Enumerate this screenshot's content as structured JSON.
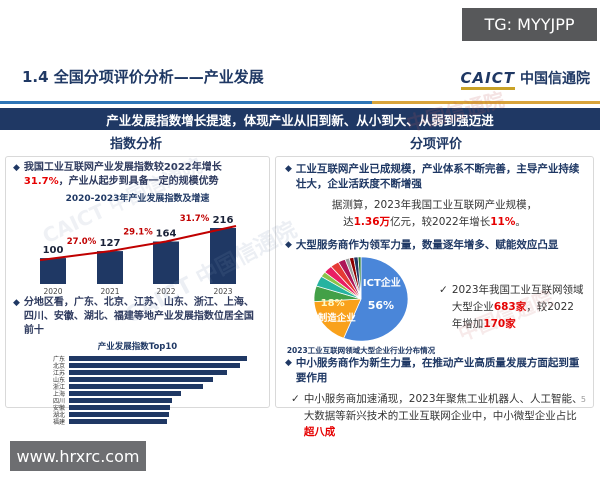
{
  "badge": "TG: MYYJPP",
  "header": {
    "title": "1.4 全国分项评价分析——产业发展",
    "logo_caict": "CAICT",
    "logo_org": "中国信通院"
  },
  "banner": "产业发展指数增长提速，体现产业从旧到新、从小到大、从弱到强迈进",
  "sections": {
    "left_title": "指数分析",
    "right_title": "分项评价"
  },
  "markers": {
    "diamond": "◆",
    "check": "✓"
  },
  "left": {
    "bullet1": {
      "pre": "我国工业互联网产业发展指数较2022年增长",
      "hl": "31.7%",
      "post": "，产业从起步到具备一定的规模优势"
    },
    "bullet2": "分地区看，广东、北京、江苏、山东、浙江、上海、四川、安徽、湖北、福建等地产业发展指数位居全国前十"
  },
  "right": {
    "bullet1": "工业互联网产业已成规模，产业体系不断完善，主导产业持续壮大，企业活跃度不断增强",
    "sub1": {
      "s1": "据测算，2023年我国工业互联网产业规模，",
      "s2": "达",
      "hl1": "1.36万",
      "s3": "亿元，较2022年增长",
      "hl2": "11%",
      "s4": "。"
    },
    "bullet2": "大型服务商作为领军力量，数量逐年增多、赋能效应凸显",
    "check1": {
      "s1": "2023年我国工业互联网领域大型企业",
      "hl1": "683家",
      "s2": "，较2022年增加",
      "hl2": "170家"
    },
    "bullet3": "中小服务商作为新生力量，在推动产业高质量发展方面起到重要作用",
    "check2": {
      "s1": "中小服务商加速涌现，2023年聚焦工业机器人、人工智能、大数据等新兴技术的工业互联网企业中，中小微型企业占比",
      "hl1": "超八成"
    }
  },
  "chart_data": [
    {
      "type": "bar",
      "title": "2020-2023年产业发展指数及增速",
      "categories": [
        "2020",
        "2021",
        "2022",
        "2023"
      ],
      "values": [
        100,
        127,
        164,
        216
      ],
      "growth_labels": [
        "27.0%",
        "29.1%",
        "31.7%"
      ],
      "bar_color": "#1F3864",
      "line_color": "#C00000",
      "ylim": [
        0,
        216
      ]
    },
    {
      "type": "bar",
      "orientation": "horizontal",
      "title": "产业发展指数Top10",
      "categories": [
        "广东",
        "北京",
        "江苏",
        "山东",
        "浙江",
        "上海",
        "四川",
        "安徽",
        "湖北",
        "福建"
      ],
      "values": [
        100,
        96,
        89,
        81,
        75,
        63,
        58,
        57,
        56,
        55
      ],
      "bar_color": "#1F3864",
      "note": "relative index lengths, Guangdong = 100"
    },
    {
      "type": "pie",
      "title": "2023工业互联网领域大型企业行业分布情况",
      "slices": [
        {
          "label": "ICT企业",
          "value": 56,
          "pct_label": "56%",
          "color": "#4A86D9"
        },
        {
          "label": "制造企业",
          "value": 18,
          "pct_label": "18%",
          "color": "#F9A11B"
        },
        {
          "label": "",
          "value": 6,
          "color": "#43A047"
        },
        {
          "label": "",
          "value": 4,
          "color": "#26B3A0"
        },
        {
          "label": "",
          "value": 2,
          "color": "#8BC34A"
        },
        {
          "label": "",
          "value": 3,
          "color": "#E91E63"
        },
        {
          "label": "",
          "value": 3,
          "color": "#E53935"
        },
        {
          "label": "",
          "value": 2.5,
          "color": "#AD1457"
        },
        {
          "label": "",
          "value": 1.5,
          "color": "#9E9E9E"
        },
        {
          "label": "",
          "value": 1.5,
          "color": "#8B0000"
        },
        {
          "label": "",
          "value": 1.5,
          "color": "#1F3864"
        },
        {
          "label": "",
          "value": 1,
          "color": "#2E7D32"
        }
      ]
    }
  ],
  "page_number": "5",
  "watermark_box": "www.hrxrc.com",
  "bg_watermarks": [
    "中国信通院",
    "CAICT 中国信通院"
  ]
}
